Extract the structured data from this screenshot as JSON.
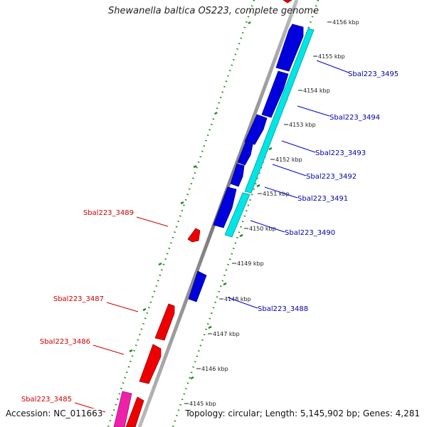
{
  "title": "Shewanella baltica OS223, complete genome",
  "footer": {
    "accession": "Accession: NC_011663",
    "summary": "Topology: circular; Length: 5,145,902 bp; Genes: 4,281"
  },
  "colors": {
    "forward_gene": "#0000dd",
    "reverse_gene": "#ee0000",
    "cds_forward": "#00e5e5",
    "cds_reverse": "#ee22aa",
    "backbone": "#888888",
    "gc_ticks": "#228b22",
    "label_forward": "#0000aa",
    "label_reverse": "#cc0000"
  },
  "scale_ticks": [
    "4145 kbp",
    "4146 kbp",
    "4147 kbp",
    "4148 kbp",
    "4149 kbp",
    "4150 kbp",
    "4151 kbp",
    "4152 kbp",
    "4153 kbp",
    "4154 kbp",
    "4155 kbp",
    "4156 kbp"
  ],
  "forward_labels": [
    "Sbal223_3495",
    "Sbal223_3494",
    "Sbal223_3493",
    "Sbal223_3492",
    "Sbal223_3491",
    "Sbal223_3490",
    "Sbal223_3488"
  ],
  "reverse_labels": [
    "Sbal223_3489",
    "Sbal223_3487",
    "Sbal223_3486",
    "Sbal223_3485"
  ]
}
